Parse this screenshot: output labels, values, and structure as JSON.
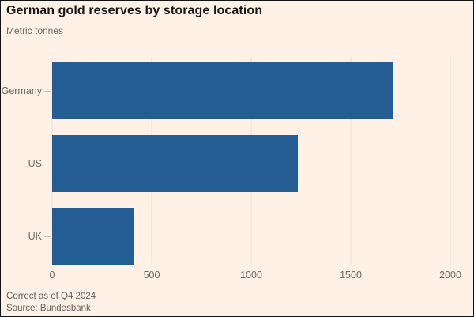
{
  "colors": {
    "background": "#FFF1E5",
    "bar": "#245C94",
    "title_text": "#1A1817",
    "muted_text": "#6B6660",
    "gridline": "#EDDFD0"
  },
  "footer": {
    "note": "Correct as of Q4 2024",
    "source": "Source: Bundesbank"
  },
  "chart_data": {
    "type": "bar",
    "orientation": "horizontal",
    "title": "German gold reserves by storage location",
    "subtitle": "Metric tonnes",
    "unit": "Metric tonnes",
    "categories": [
      "Germany",
      "US",
      "UK"
    ],
    "values": [
      1710,
      1236,
      407
    ],
    "xlim": [
      0,
      2000
    ],
    "xticks": [
      0,
      500,
      1000,
      1500,
      2000
    ],
    "grid": true,
    "legend": "none",
    "note": "Correct as of Q4 2024",
    "source": "Source: Bundesbank"
  }
}
